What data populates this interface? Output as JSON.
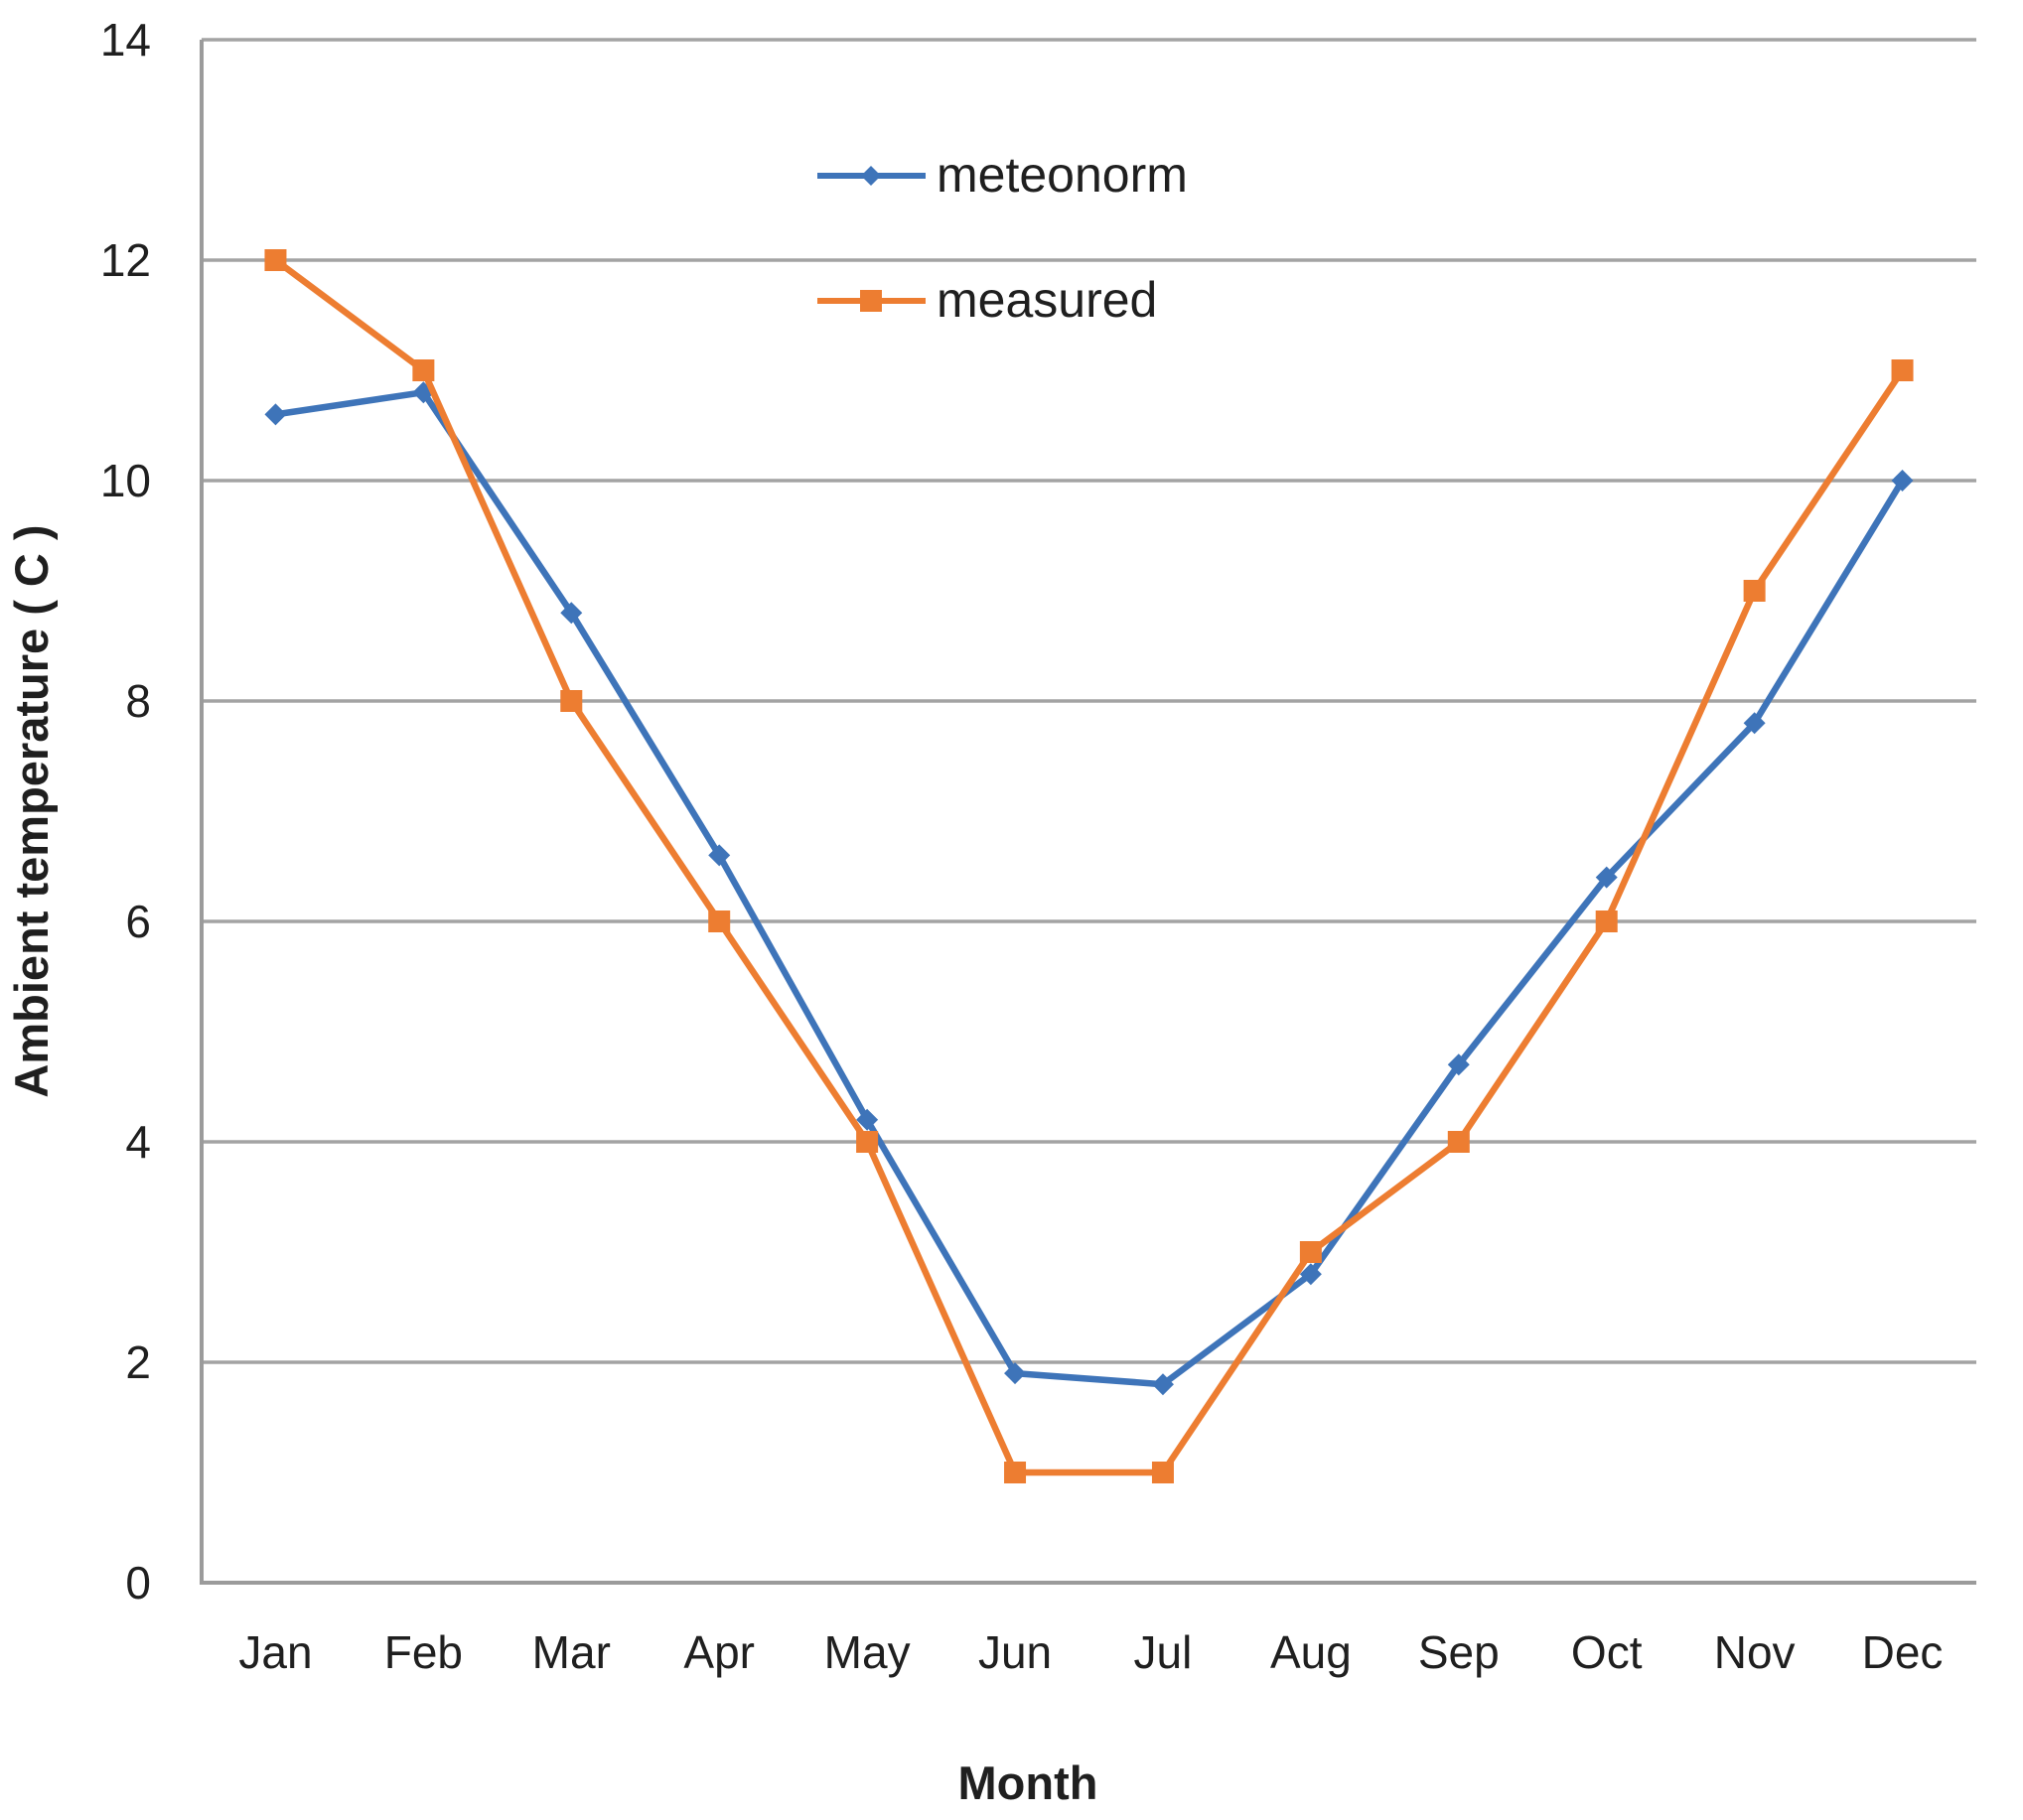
{
  "chart_data": {
    "type": "line",
    "title": "",
    "categories": [
      "Jan",
      "Feb",
      "Mar",
      "Apr",
      "May",
      "Jun",
      "Jul",
      "Aug",
      "Sep",
      "Oct",
      "Nov",
      "Dec"
    ],
    "series": [
      {
        "name": "meteonorm",
        "color": "#3E74B9",
        "marker": "diamond",
        "values": [
          10.6,
          10.8,
          8.8,
          6.6,
          4.2,
          1.9,
          1.8,
          2.8,
          4.7,
          6.4,
          7.8,
          10.0
        ]
      },
      {
        "name": "measured",
        "color": "#ED7D31",
        "marker": "square",
        "values": [
          12,
          11,
          8,
          6,
          4,
          1,
          1,
          3,
          4,
          6,
          9,
          11
        ]
      }
    ],
    "xlabel": "Month",
    "ylabel": "Ambient temperature ( C )",
    "ylim": [
      0,
      14
    ],
    "ytick_step": 2,
    "yticks": [
      "0",
      "2",
      "4",
      "6",
      "8",
      "10",
      "12",
      "14"
    ],
    "grid": true,
    "legend_position": "top-center",
    "colors": {
      "gridline": "#A3A3A3",
      "axis_line": "#9B9B9B",
      "text": "#1f1f1f",
      "background": "#ffffff"
    }
  }
}
